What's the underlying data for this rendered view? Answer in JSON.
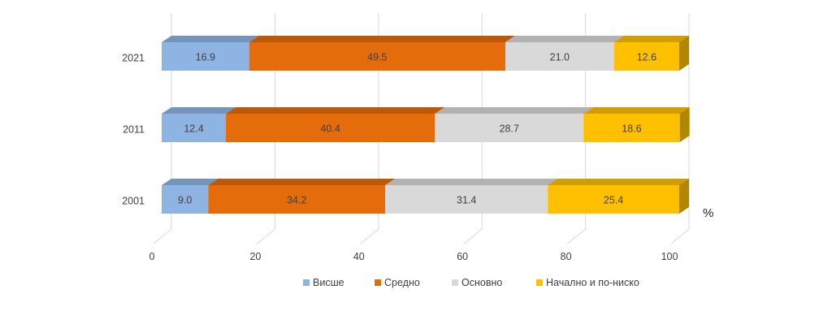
{
  "chart_data": {
    "type": "bar",
    "orientation": "horizontal",
    "stacked": true,
    "style": "3d",
    "categories": [
      "2021",
      "2011",
      "2001"
    ],
    "series": [
      {
        "name": "Висше",
        "values": [
          16.9,
          12.4,
          9.0
        ],
        "labels": [
          "16.9",
          "12.4",
          "9.0"
        ],
        "color": "#8DB4E2"
      },
      {
        "name": "Средно",
        "values": [
          49.5,
          40.4,
          34.2
        ],
        "labels": [
          "49.5",
          "40.4",
          "34.2"
        ],
        "color": "#E46C0A"
      },
      {
        "name": "Основно",
        "values": [
          21.0,
          28.7,
          31.4
        ],
        "labels": [
          "21.0",
          "28.7",
          "31.4"
        ],
        "color": "#D9D9D9"
      },
      {
        "name": "Начално и по-ниско",
        "values": [
          12.6,
          18.6,
          25.4
        ],
        "labels": [
          "12.6",
          "18.6",
          "25.4"
        ],
        "color": "#FFC000"
      }
    ],
    "x_ticks": [
      "0",
      "20",
      "40",
      "60",
      "80",
      "100"
    ],
    "xlim": [
      0,
      100
    ],
    "unit_label": "%",
    "grid": true,
    "legend_position": "bottom"
  }
}
